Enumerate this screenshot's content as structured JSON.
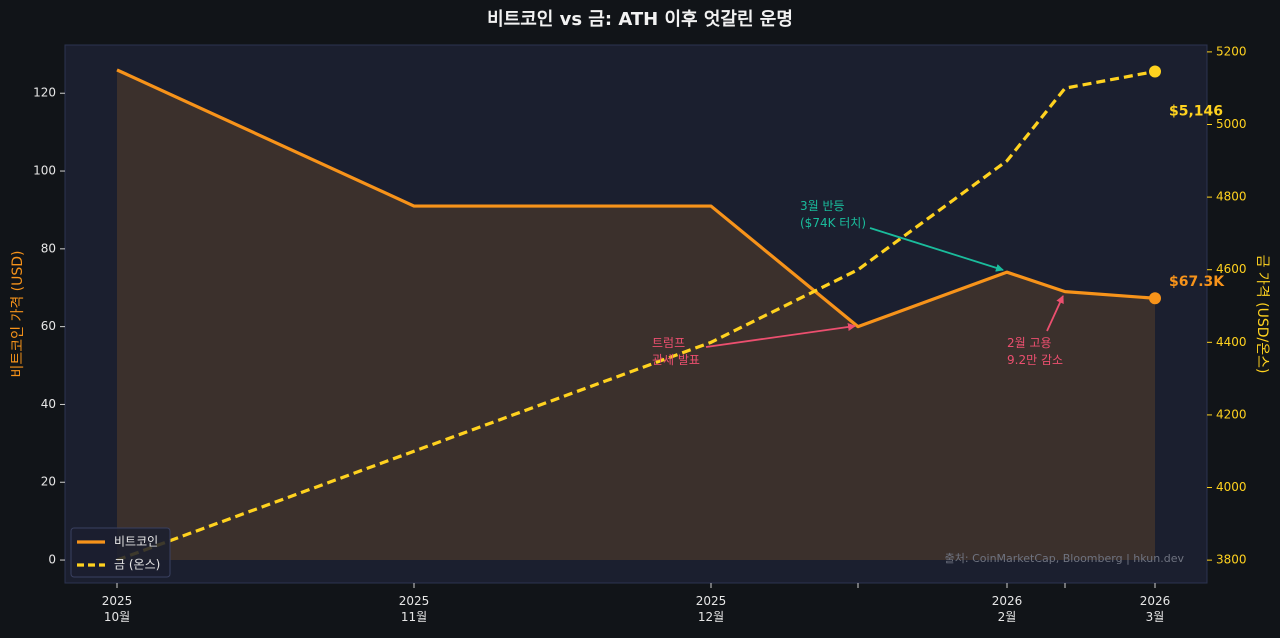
{
  "chart_data": {
    "type": "line",
    "title": "비트코인 vs 금: ATH 이후 엇갈린 운명",
    "ylabel": "비트코인 가격 (USD)",
    "y2label": "금 가격 (USD/온스)",
    "categories": [
      "2025\n10월",
      "2025\n11월",
      "2025\n12월",
      null,
      "2026\n2월",
      null,
      "2026\n3월"
    ],
    "series": [
      {
        "name": "비트코인",
        "color": "#f7931a",
        "fill": true,
        "values": [
          126,
          91,
          91,
          60,
          74,
          69,
          67.3
        ],
        "value_labels": [
          null,
          null,
          null,
          null,
          null,
          null,
          "$67.3K"
        ]
      },
      {
        "name": "금 (온스)",
        "color": "#ffd21f",
        "axis": "y2",
        "dashed": true,
        "values": [
          3800,
          4100,
          4400,
          4600,
          4900,
          5100,
          5146
        ],
        "value_labels": [
          null,
          null,
          null,
          null,
          null,
          null,
          "$5,146"
        ]
      }
    ],
    "ylim": [
      -5.9,
      132.4
    ],
    "yticks": [
      0,
      20,
      40,
      60,
      80,
      100,
      120
    ],
    "y2lim": [
      3737,
      5219
    ],
    "y2ticks": [
      3800,
      4000,
      4200,
      4400,
      4600,
      4800,
      5000,
      5200
    ],
    "legend": "lower left",
    "annotations": [
      {
        "text": "3월 반등\n($74K 터치)",
        "color": "#1abc9c"
      },
      {
        "text": "트럼프\n관세 발표",
        "color": "#ec4f6f"
      },
      {
        "text": "2월 고용\n9.2만 감소",
        "color": "#ec4f6f"
      }
    ],
    "source": "출처: CoinMarketCap, Bloomberg | hkun.dev"
  }
}
